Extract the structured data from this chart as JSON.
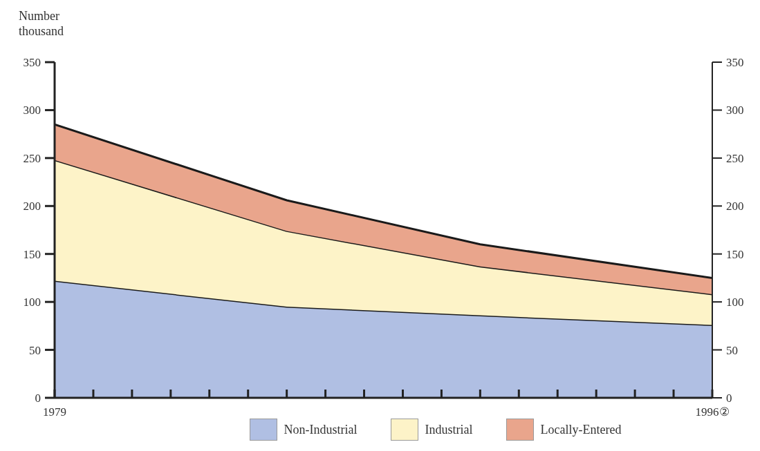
{
  "chart_data": {
    "type": "area",
    "ylabel": "Number\nthousand",
    "stacked": true,
    "x": [
      1979,
      1985,
      1990,
      1996
    ],
    "series": [
      {
        "name": "Non-Industrial",
        "color": "#b0bfe3",
        "values": [
          122,
          95,
          86,
          76
        ]
      },
      {
        "name": "Industrial",
        "color": "#fdf3c8",
        "values": [
          126,
          79,
          51,
          32
        ]
      },
      {
        "name": "Locally-Entered",
        "color": "#e9a58c",
        "values": [
          37,
          32,
          23,
          17
        ]
      }
    ],
    "xlim": [
      1979,
      1996
    ],
    "xticks": [
      {
        "value": 1979,
        "label": "1979"
      },
      {
        "value": 1980,
        "label": null
      },
      {
        "value": 1981,
        "label": null
      },
      {
        "value": 1982,
        "label": null
      },
      {
        "value": 1983,
        "label": null
      },
      {
        "value": 1984,
        "label": null
      },
      {
        "value": 1985,
        "label": null
      },
      {
        "value": 1986,
        "label": null
      },
      {
        "value": 1987,
        "label": null
      },
      {
        "value": 1988,
        "label": null
      },
      {
        "value": 1989,
        "label": null
      },
      {
        "value": 1990,
        "label": null
      },
      {
        "value": 1991,
        "label": null
      },
      {
        "value": 1992,
        "label": null
      },
      {
        "value": 1993,
        "label": null
      },
      {
        "value": 1994,
        "label": null
      },
      {
        "value": 1995,
        "label": null
      },
      {
        "value": 1996,
        "label": "1996②"
      }
    ],
    "ylim": [
      0,
      350
    ],
    "yticks": [
      0,
      50,
      100,
      150,
      200,
      250,
      300,
      350
    ],
    "y2lim": [
      0,
      350
    ],
    "y2ticks": [
      0,
      50,
      100,
      150,
      200,
      250,
      300,
      350
    ],
    "legend": "bottom",
    "grid": false
  }
}
